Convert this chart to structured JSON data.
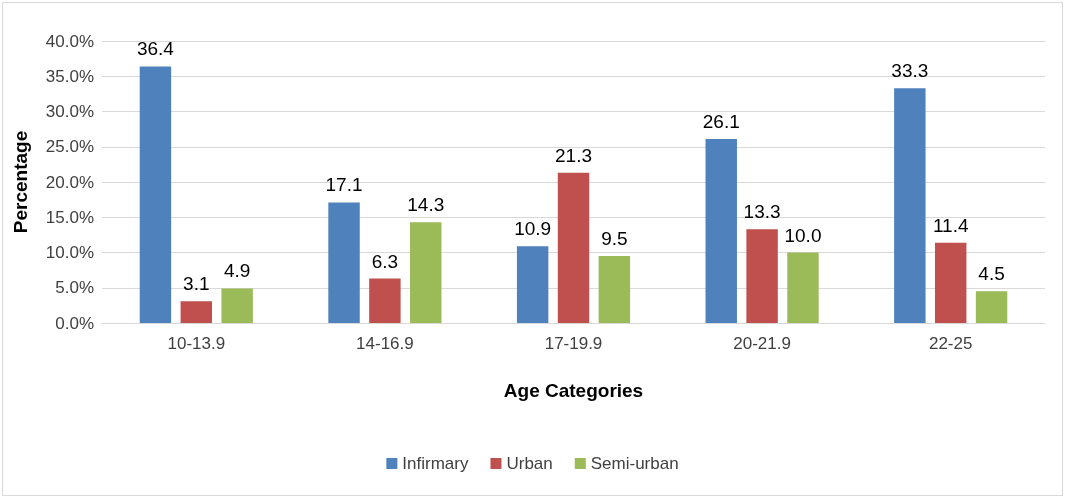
{
  "chart_data": {
    "type": "bar",
    "xlabel": "Age Categories",
    "ylabel": "Percentage",
    "categories": [
      "10-13.9",
      "14-16.9",
      "17-19.9",
      "20-21.9",
      "22-25"
    ],
    "series": [
      {
        "name": "Infirmary",
        "color": "#4f81bd",
        "values": [
          36.4,
          17.1,
          10.9,
          26.1,
          33.3
        ],
        "value_labels": [
          "36.4",
          "17.1",
          "10.9",
          "26.1",
          "33.3"
        ]
      },
      {
        "name": "Urban",
        "color": "#c0504d",
        "values": [
          3.1,
          6.3,
          21.3,
          13.3,
          11.4
        ],
        "value_labels": [
          "3.1",
          "6.3",
          "21.3",
          "13.3",
          "11.4"
        ]
      },
      {
        "name": "Semi-urban",
        "color": "#9bbb59",
        "values": [
          4.9,
          14.3,
          9.5,
          10.0,
          4.5
        ],
        "value_labels": [
          "4.9",
          "14.3",
          "9.5",
          "10.0",
          "4.5"
        ]
      }
    ],
    "ylim": [
      0,
      40
    ],
    "yticks": [
      {
        "value": 0,
        "label": "0.0%"
      },
      {
        "value": 5,
        "label": "5.0%"
      },
      {
        "value": 10,
        "label": "10.0%"
      },
      {
        "value": 15,
        "label": "15.0%"
      },
      {
        "value": 20,
        "label": "20.0%"
      },
      {
        "value": 25,
        "label": "25.0%"
      },
      {
        "value": 30,
        "label": "30.0%"
      },
      {
        "value": 35,
        "label": "35.0%"
      },
      {
        "value": 40,
        "label": "40.0%"
      }
    ],
    "grid": "y",
    "legend": "bottom"
  }
}
